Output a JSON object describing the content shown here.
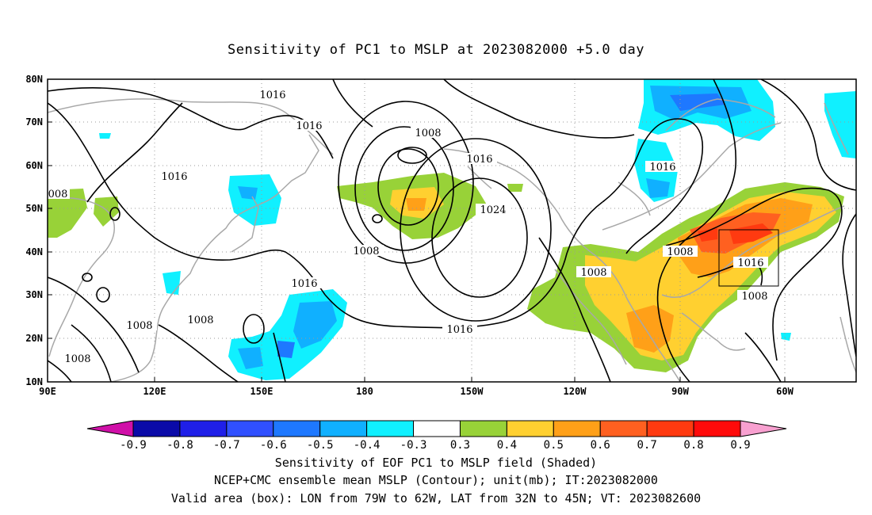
{
  "title": "Sensitivity of PC1 to MSLP at 2023082000 +5.0 day",
  "map": {
    "lat_range": [
      10,
      80
    ],
    "lon_range": [
      90,
      310
    ],
    "lat_ticks": [
      "80N",
      "70N",
      "60N",
      "50N",
      "40N",
      "30N",
      "20N",
      "10N"
    ],
    "lon_ticks": [
      "90E",
      "120E",
      "150E",
      "180",
      "150W",
      "120W",
      "90W",
      "60W"
    ],
    "grid": "dotted",
    "valid_box": {
      "lon": [
        -79,
        -62
      ],
      "lat": [
        32,
        45
      ]
    },
    "contour_labels": [
      "1016",
      "1016",
      "1008",
      "1016",
      "1016",
      "1024",
      "008",
      "1008",
      "1016",
      "1008",
      "1016",
      "1008",
      "1008",
      "1016",
      "1008",
      "1008",
      "1008",
      "1016"
    ]
  },
  "colorbar": {
    "ticks": [
      "-0.9",
      "-0.8",
      "-0.7",
      "-0.6",
      "-0.5",
      "-0.4",
      "-0.3",
      "0.3",
      "0.4",
      "0.5",
      "0.6",
      "0.7",
      "0.8",
      "0.9"
    ],
    "colors": [
      "#0a0aa8",
      "#1f1fe8",
      "#3050ff",
      "#1e78ff",
      "#10b0ff",
      "#10f0ff",
      "#ffffff",
      "#98d238",
      "#ffd030",
      "#ffa018",
      "#ff6020",
      "#ff3a10",
      "#ff0a0a"
    ],
    "end_low": "#d010a8",
    "end_high": "#f8a0d0"
  },
  "captions": [
    "Sensitivity of EOF PC1 to MSLP field (Shaded)",
    "NCEP+CMC ensemble mean MSLP (Contour); unit(mb); IT:2023082000",
    "Valid area (box): LON from 79W to 62W, LAT from 32N to 45N; VT: 2023082600"
  ]
}
